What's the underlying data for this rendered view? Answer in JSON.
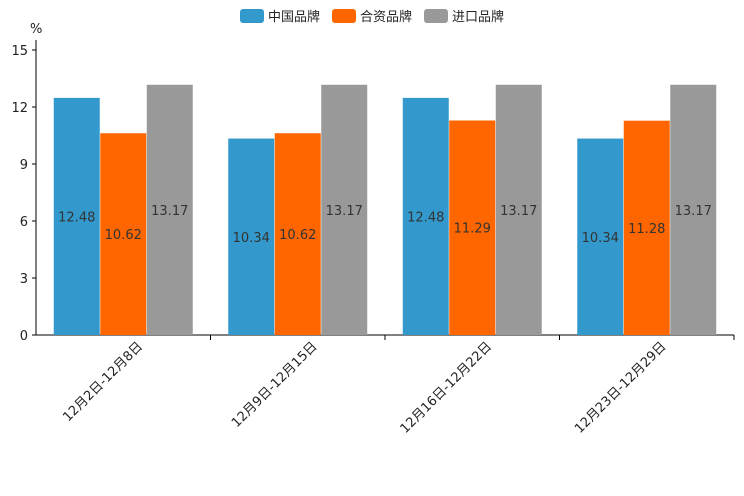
{
  "chart_data": {
    "type": "bar",
    "unit": "%",
    "categories": [
      "12月2日-12月8日",
      "12月9日-12月15日",
      "12月16日-12月22日",
      "12月23日-12月29日"
    ],
    "series": [
      {
        "name": "中国品牌",
        "color": "#3399cc",
        "values": [
          12.48,
          10.34,
          12.48,
          10.34
        ]
      },
      {
        "name": "合资品牌",
        "color": "#ff6600",
        "values": [
          10.62,
          10.62,
          11.29,
          11.28
        ]
      },
      {
        "name": "进口品牌",
        "color": "#999999",
        "values": [
          13.17,
          13.17,
          13.17,
          13.17
        ]
      }
    ],
    "ylim": [
      0,
      15
    ],
    "yticks": [
      0,
      3,
      6,
      9,
      12,
      15
    ],
    "legend_position": "top-center",
    "grid": false
  }
}
